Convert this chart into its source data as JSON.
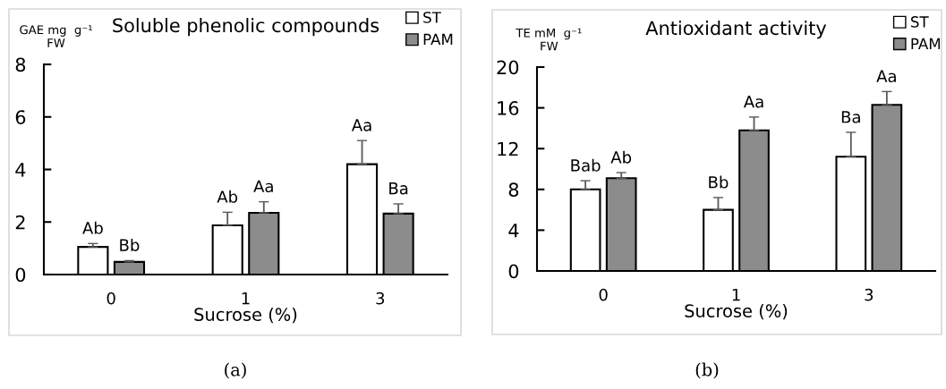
{
  "chart_data": [
    {
      "type": "bar",
      "title": "Soluble phenolic compounds",
      "ylabel": "GAE mg  g⁻¹\nFW",
      "xlabel": "Sucrose (%)",
      "categories": [
        "0",
        "1",
        "3"
      ],
      "ylim": [
        0,
        8
      ],
      "yticks": [
        0,
        2,
        4,
        6,
        8
      ],
      "legend": "top right",
      "grid": false,
      "annotations": [
        "(a)"
      ],
      "series": [
        {
          "name": "ST",
          "color": "#ffffff",
          "values": [
            1.05,
            1.87,
            4.2
          ],
          "errors": [
            [
              1.05,
              1.18
            ],
            [
              1.87,
              2.37
            ],
            [
              4.2,
              5.1
            ]
          ],
          "value_labels": [
            "Ab",
            "Ab",
            "Aa"
          ]
        },
        {
          "name": "PAM",
          "color": "#8c8c8c",
          "values": [
            0.48,
            2.35,
            2.32
          ],
          "errors": [
            [
              0.48,
              0.53
            ],
            [
              2.35,
              2.77
            ],
            [
              2.32,
              2.69
            ]
          ],
          "value_labels": [
            "Bb",
            "Aa",
            "Ba"
          ]
        }
      ]
    },
    {
      "type": "bar",
      "title": "Antioxidant activity",
      "ylabel": "TE mM  g⁻¹\nFW",
      "xlabel": "Sucrose (%)",
      "categories": [
        "0",
        "1",
        "3"
      ],
      "ylim": [
        0,
        20
      ],
      "yticks": [
        0,
        4,
        8,
        12,
        16,
        20
      ],
      "legend": "top right",
      "grid": false,
      "annotations": [
        "(b)"
      ],
      "series": [
        {
          "name": "ST",
          "color": "#ffffff",
          "values": [
            8.0,
            6.0,
            11.2
          ],
          "errors": [
            [
              8.0,
              8.85
            ],
            [
              6.0,
              7.2
            ],
            [
              11.2,
              13.6
            ]
          ],
          "value_labels": [
            "Bab",
            "Bb",
            "Ba"
          ]
        },
        {
          "name": "PAM",
          "color": "#8c8c8c",
          "values": [
            9.1,
            13.8,
            16.3
          ],
          "errors": [
            [
              9.1,
              9.65
            ],
            [
              13.8,
              15.1
            ],
            [
              16.3,
              17.6
            ]
          ],
          "value_labels": [
            "Ab",
            "Aa",
            "Aa"
          ]
        }
      ]
    }
  ]
}
